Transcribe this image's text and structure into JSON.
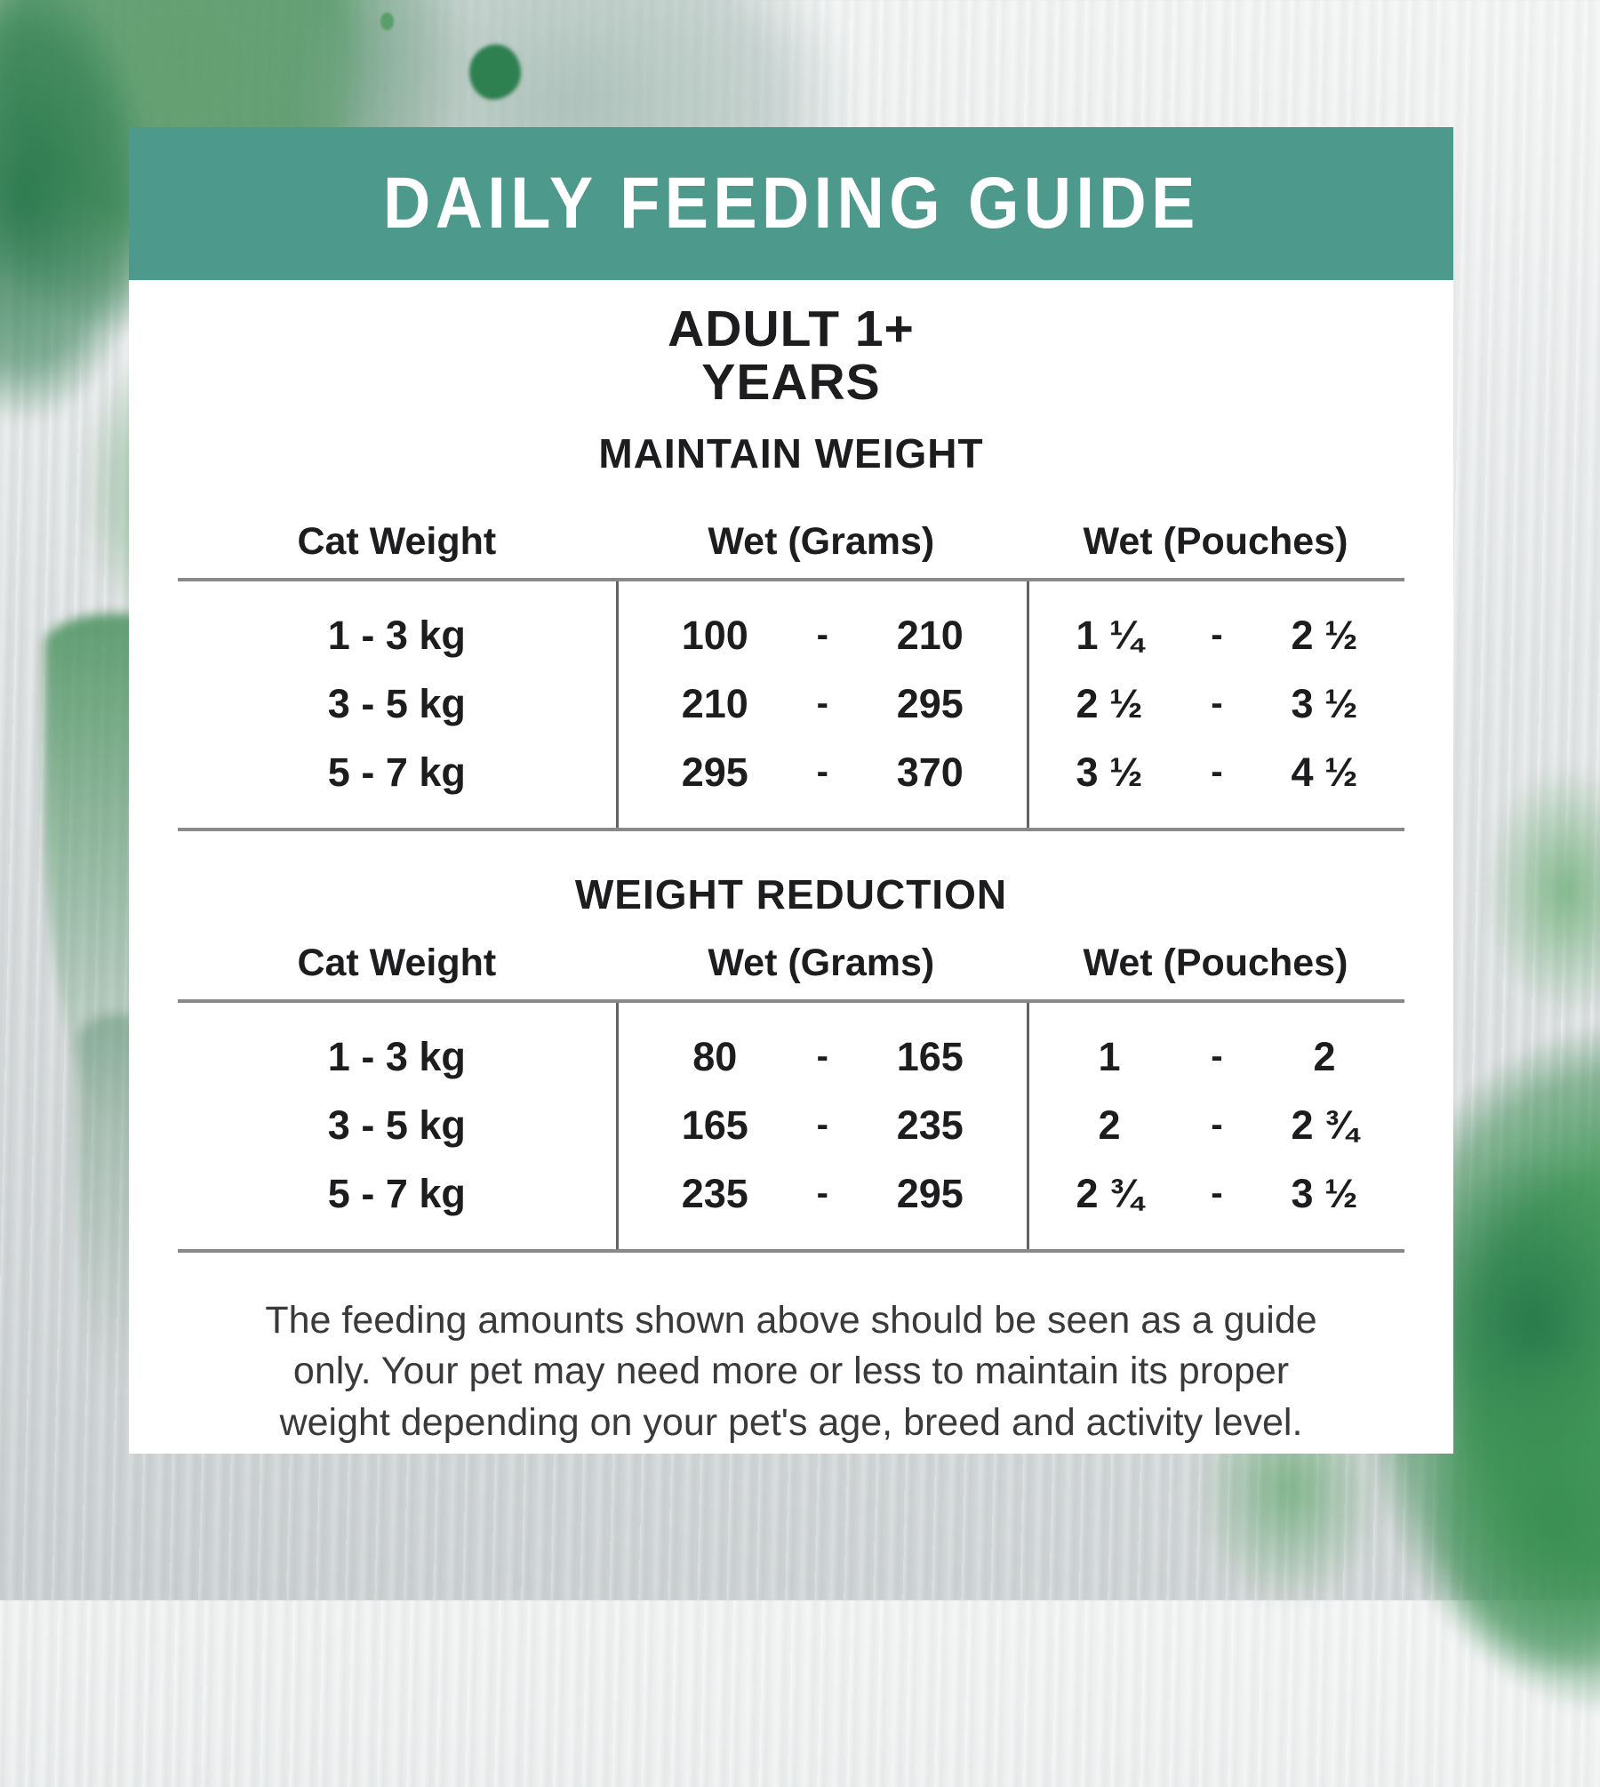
{
  "banner": {
    "title": "DAILY FEEDING GUIDE"
  },
  "age_group": {
    "line1": "ADULT 1+",
    "line2": "YEARS"
  },
  "separator": "-",
  "tables": [
    {
      "heading": "MAINTAIN WEIGHT",
      "columns": {
        "weight": "Cat Weight",
        "grams": "Wet (Grams)",
        "pouches": "Wet (Pouches)"
      },
      "rows": [
        {
          "weight": "1 - 3 kg",
          "grams_min": "100",
          "grams_max": "210",
          "pouches_min": "1 ¼",
          "pouches_max": "2 ½"
        },
        {
          "weight": "3 - 5 kg",
          "grams_min": "210",
          "grams_max": "295",
          "pouches_min": "2 ½",
          "pouches_max": "3 ½"
        },
        {
          "weight": "5 - 7 kg",
          "grams_min": "295",
          "grams_max": "370",
          "pouches_min": "3 ½",
          "pouches_max": "4 ½"
        }
      ]
    },
    {
      "heading": "WEIGHT REDUCTION",
      "columns": {
        "weight": "Cat Weight",
        "grams": "Wet (Grams)",
        "pouches": "Wet (Pouches)"
      },
      "rows": [
        {
          "weight": "1 - 3 kg",
          "grams_min": "80",
          "grams_max": "165",
          "pouches_min": "1",
          "pouches_max": "2"
        },
        {
          "weight": "3 - 5 kg",
          "grams_min": "165",
          "grams_max": "235",
          "pouches_min": "2",
          "pouches_max": "2 ¾"
        },
        {
          "weight": "5 - 7 kg",
          "grams_min": "235",
          "grams_max": "295",
          "pouches_min": "2 ¾",
          "pouches_max": "3 ½"
        }
      ]
    }
  ],
  "footer": {
    "lines": [
      "The feeding amounts shown above should be seen as a guide",
      "only. Your pet may need more or less to maintain its proper",
      "weight depending on your pet's age, breed and activity level."
    ]
  },
  "colors": {
    "banner_teal": "#4d998b",
    "rule_gray": "#87898b",
    "divider_gray": "#626466",
    "text_black": "#1d1d1f",
    "background_gray": "#e3e5e6",
    "splash_green_dark": "#2e8050",
    "splash_green": "#4f9b60",
    "splash_green_light": "#8fc59a"
  }
}
